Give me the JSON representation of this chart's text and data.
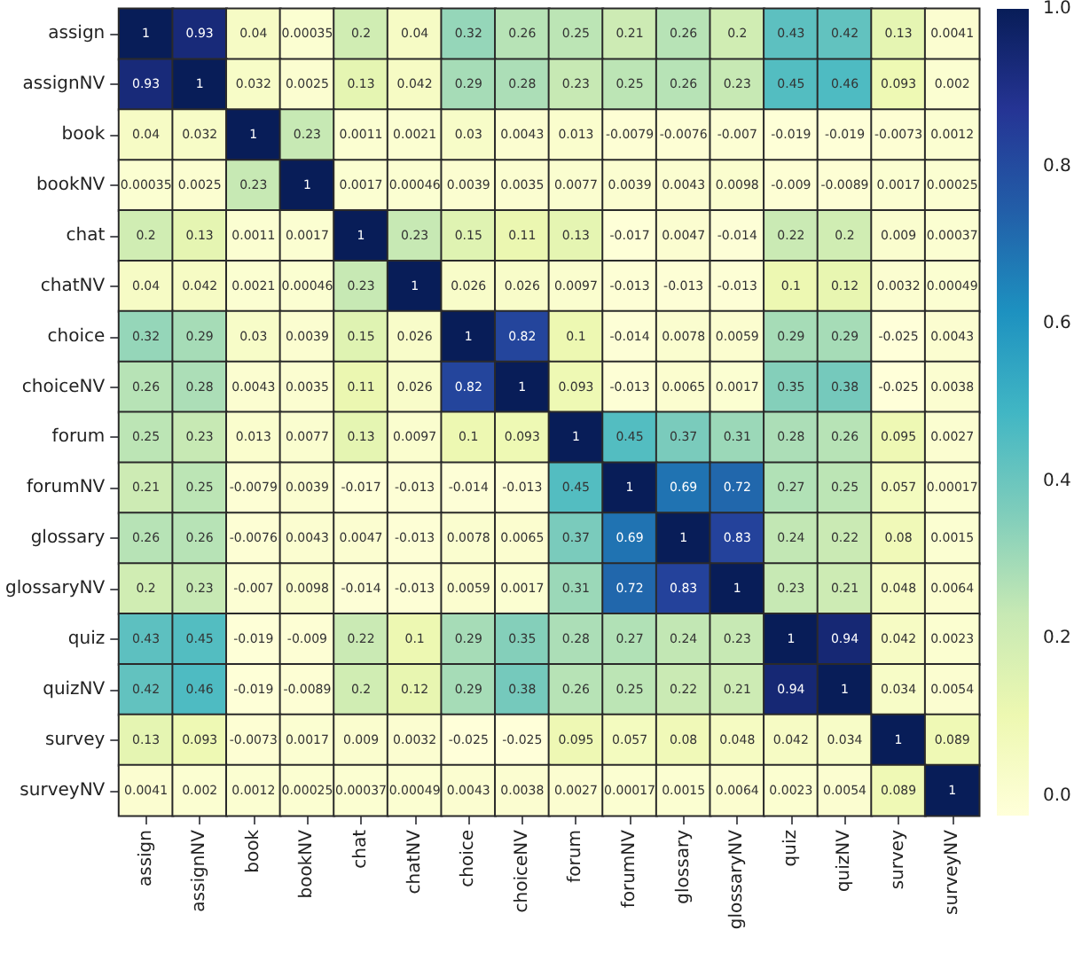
{
  "chart_data": {
    "type": "heatmap",
    "categories": [
      "assign",
      "assignNV",
      "book",
      "bookNV",
      "chat",
      "chatNV",
      "choice",
      "choiceNV",
      "forum",
      "forumNV",
      "glossary",
      "glossaryNV",
      "quiz",
      "quizNV",
      "survey",
      "surveyNV"
    ],
    "y_categories": [
      "assign",
      "assignNV",
      "book",
      "bookNV",
      "chat",
      "chatNV",
      "choice",
      "choiceNV",
      "forum",
      "forumNV",
      "glossary",
      "glossaryNV",
      "quiz",
      "quizNV",
      "survey",
      "surveyNV"
    ],
    "cells": [
      [
        1,
        0.93,
        0.04,
        0.00035,
        0.2,
        0.04,
        0.32,
        0.26,
        0.25,
        0.21,
        0.26,
        0.2,
        0.43,
        0.42,
        0.13,
        0.0041
      ],
      [
        0.93,
        1,
        0.032,
        0.0025,
        0.13,
        0.042,
        0.29,
        0.28,
        0.23,
        0.25,
        0.26,
        0.23,
        0.45,
        0.46,
        0.093,
        0.002
      ],
      [
        0.04,
        0.032,
        1,
        0.23,
        0.0011,
        0.0021,
        0.03,
        0.0043,
        0.013,
        -0.0079,
        -0.0076,
        -0.007,
        -0.019,
        -0.019,
        -0.0073,
        0.0012
      ],
      [
        0.00035,
        0.0025,
        0.23,
        1,
        0.0017,
        0.00046,
        0.0039,
        0.0035,
        0.0077,
        0.0039,
        0.0043,
        0.0098,
        -0.009,
        -0.0089,
        0.0017,
        0.00025
      ],
      [
        0.2,
        0.13,
        0.0011,
        0.0017,
        1,
        0.23,
        0.15,
        0.11,
        0.13,
        -0.017,
        0.0047,
        -0.014,
        0.22,
        0.2,
        0.009,
        0.00037
      ],
      [
        0.04,
        0.042,
        0.0021,
        0.00046,
        0.23,
        1,
        0.026,
        0.026,
        0.0097,
        -0.013,
        -0.013,
        -0.013,
        0.1,
        0.12,
        0.0032,
        0.00049
      ],
      [
        0.32,
        0.29,
        0.03,
        0.0039,
        0.15,
        0.026,
        1,
        0.82,
        0.1,
        -0.014,
        0.0078,
        0.0059,
        0.29,
        0.29,
        -0.025,
        0.0043
      ],
      [
        0.26,
        0.28,
        0.0043,
        0.0035,
        0.11,
        0.026,
        0.82,
        1,
        0.093,
        -0.013,
        0.0065,
        0.0017,
        0.35,
        0.38,
        -0.025,
        0.0038
      ],
      [
        0.25,
        0.23,
        0.013,
        0.0077,
        0.13,
        0.0097,
        0.1,
        0.093,
        1,
        0.45,
        0.37,
        0.31,
        0.28,
        0.26,
        0.095,
        0.0027
      ],
      [
        0.21,
        0.25,
        -0.0079,
        0.0039,
        -0.017,
        -0.013,
        -0.014,
        -0.013,
        0.45,
        1,
        0.69,
        0.72,
        0.27,
        0.25,
        0.057,
        0.00017
      ],
      [
        0.26,
        0.26,
        -0.0076,
        0.0043,
        0.0047,
        -0.013,
        0.0078,
        0.0065,
        0.37,
        0.69,
        1,
        0.83,
        0.24,
        0.22,
        0.08,
        0.0015
      ],
      [
        0.2,
        0.23,
        -0.007,
        0.0098,
        -0.014,
        -0.013,
        0.0059,
        0.0017,
        0.31,
        0.72,
        0.83,
        1,
        0.23,
        0.21,
        0.048,
        0.0064
      ],
      [
        0.43,
        0.45,
        -0.019,
        -0.009,
        0.22,
        0.1,
        0.29,
        0.35,
        0.28,
        0.27,
        0.24,
        0.23,
        1,
        0.94,
        0.042,
        0.0023
      ],
      [
        0.42,
        0.46,
        -0.019,
        -0.0089,
        0.2,
        0.12,
        0.29,
        0.38,
        0.26,
        0.25,
        0.22,
        0.21,
        0.94,
        1,
        0.034,
        0.0054
      ],
      [
        0.13,
        0.093,
        -0.0073,
        0.0017,
        0.009,
        0.0032,
        -0.025,
        -0.025,
        0.095,
        0.057,
        0.08,
        0.048,
        0.042,
        0.034,
        1,
        0.089
      ],
      [
        0.0041,
        0.002,
        0.0012,
        0.00025,
        0.00037,
        0.00049,
        0.0043,
        0.0038,
        0.0027,
        0.00017,
        0.0015,
        0.0064,
        0.0023,
        0.0054,
        0.089,
        1
      ]
    ],
    "data_labels": true,
    "clim": [
      -0.025,
      1
    ],
    "cticks": [
      {
        "value": 0,
        "label": "0.0"
      },
      {
        "value": 0.2,
        "label": "0.2"
      },
      {
        "value": 0.4,
        "label": "0.4"
      },
      {
        "value": 0.6,
        "label": "0.6"
      },
      {
        "value": 0.8,
        "label": "0.8"
      },
      {
        "value": 1,
        "label": "1.0"
      }
    ]
  }
}
